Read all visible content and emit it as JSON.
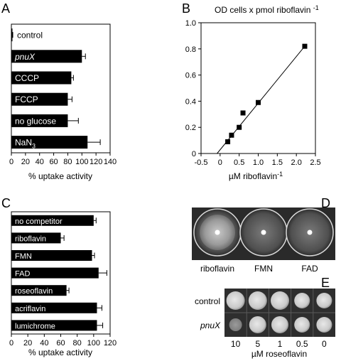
{
  "panel_letters": {
    "A": "A",
    "B": "B",
    "C": "C",
    "D": "D",
    "E": "E"
  },
  "chart_data": [
    {
      "panel": "A",
      "type": "bar",
      "orientation": "horizontal",
      "categories": [
        "control",
        "pnuX",
        "CCCP",
        "FCCP",
        "no glucose",
        "NaN3"
      ],
      "category_subscripts": {
        "NaN3": "3"
      },
      "italic_categories": [
        "pnuX"
      ],
      "values": [
        1,
        100,
        85,
        80,
        80,
        108
      ],
      "errors": [
        1,
        5,
        3,
        6,
        15,
        18
      ],
      "xlabel": "% uptake activity",
      "xlim": [
        0,
        140
      ],
      "xticks": [
        0,
        20,
        40,
        60,
        80,
        100,
        120,
        140
      ],
      "bar_color": "#000000",
      "label_color": "#ffffff"
    },
    {
      "panel": "B",
      "type": "scatter",
      "title": "OD cells x pmol riboflavin -1",
      "xlabel": "µM riboflavin-1",
      "x": [
        0.2,
        0.3,
        0.5,
        0.6,
        1.0,
        2.22
      ],
      "y": [
        0.09,
        0.14,
        0.2,
        0.31,
        0.39,
        0.82
      ],
      "fit_line": {
        "x": [
          -0.08,
          2.22
        ],
        "y": [
          0.0,
          0.82
        ]
      },
      "xlim": [
        -0.5,
        2.5
      ],
      "ylim": [
        0.0,
        1.0
      ],
      "xticks": [
        "-0.5",
        "0",
        "0.5",
        "1.0",
        "1.5",
        "2.0",
        "2.5"
      ],
      "yticks": [
        "0",
        "0.2",
        "0.4",
        "0.6",
        "0.8",
        "1.0"
      ],
      "xtick_values": [
        -0.5,
        0,
        0.5,
        1.0,
        1.5,
        2.0,
        2.5
      ],
      "ytick_values": [
        0,
        0.2,
        0.4,
        0.6,
        0.8,
        1.0
      ]
    },
    {
      "panel": "C",
      "type": "bar",
      "orientation": "horizontal",
      "categories": [
        "no competitor",
        "riboflavin",
        "FMN",
        "FAD",
        "roseoflavin",
        "acriflavin",
        "lumichrome"
      ],
      "values": [
        100,
        60,
        98,
        106,
        67,
        104,
        104
      ],
      "errors": [
        3,
        4,
        3,
        10,
        3,
        6,
        7
      ],
      "xlabel": "% uptake activity",
      "xlim": [
        0,
        120
      ],
      "xticks": [
        0,
        20,
        40,
        60,
        80,
        100,
        120
      ],
      "bar_color": "#000000",
      "label_color": "#ffffff"
    }
  ],
  "panel_d": {
    "labels": [
      "riboflavin",
      "FMN",
      "FAD"
    ]
  },
  "panel_e": {
    "rows": [
      "control",
      "pnuX"
    ],
    "italic_rows": [
      "pnuX"
    ],
    "concentrations": [
      "10",
      "5",
      "1",
      "0.5",
      "0"
    ],
    "xlabel": "µM roseoflavin"
  }
}
